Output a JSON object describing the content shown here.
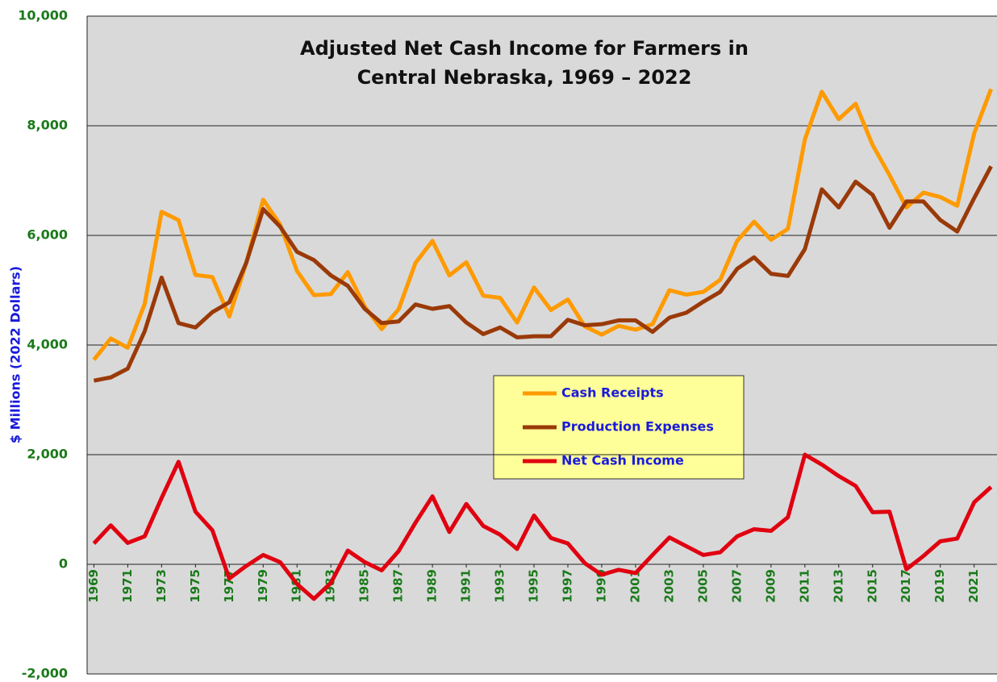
{
  "chart_data": {
    "type": "line",
    "title": "Adjusted Net Cash Income for Farmers in Central Nebraska, 1969 – 2022",
    "y_label": "$ Millions (2022 Dollars)",
    "x": [
      1969,
      1970,
      1971,
      1972,
      1973,
      1974,
      1975,
      1976,
      1977,
      1978,
      1979,
      1980,
      1981,
      1982,
      1983,
      1984,
      1985,
      1986,
      1987,
      1988,
      1989,
      1990,
      1991,
      1992,
      1993,
      1994,
      1995,
      1996,
      1997,
      1998,
      1999,
      2000,
      2001,
      2002,
      2003,
      2004,
      2005,
      2006,
      2007,
      2008,
      2009,
      2010,
      2011,
      2012,
      2013,
      2014,
      2015,
      2016,
      2017,
      2018,
      2019,
      2020,
      2021,
      2022
    ],
    "series": [
      {
        "name": "Cash Receipts",
        "color": "#ff9a00",
        "values": [
          3730,
          4120,
          3950,
          4750,
          6430,
          6280,
          5280,
          5240,
          4520,
          5500,
          6650,
          6200,
          5350,
          4910,
          4930,
          5330,
          4700,
          4290,
          4650,
          5500,
          5900,
          5270,
          5510,
          4900,
          4860,
          4410,
          5050,
          4640,
          4830,
          4340,
          4190,
          4350,
          4280,
          4380,
          5000,
          4920,
          4970,
          5190,
          5900,
          6250,
          5920,
          6120,
          7750,
          8620,
          8120,
          8400,
          7650,
          7100,
          6510,
          6780,
          6700,
          6540,
          7860,
          8670
        ]
      },
      {
        "name": "Production Expenses",
        "color": "#9a3a08",
        "values": [
          3350,
          3410,
          3570,
          4250,
          5230,
          4400,
          4320,
          4600,
          4780,
          5500,
          6480,
          6160,
          5700,
          5550,
          5270,
          5080,
          4660,
          4400,
          4430,
          4740,
          4660,
          4710,
          4410,
          4200,
          4320,
          4140,
          4160,
          4160,
          4460,
          4360,
          4380,
          4450,
          4450,
          4240,
          4500,
          4590,
          4790,
          4970,
          5390,
          5600,
          5300,
          5260,
          5750,
          6840,
          6510,
          6980,
          6740,
          6140,
          6620,
          6620,
          6280,
          6070,
          6680,
          7260
        ]
      },
      {
        "name": "Net Cash Income",
        "color": "#e00010",
        "values": [
          380,
          710,
          390,
          510,
          1210,
          1870,
          960,
          620,
          -260,
          -30,
          170,
          40,
          -360,
          -630,
          -340,
          250,
          40,
          -110,
          240,
          760,
          1240,
          590,
          1100,
          700,
          540,
          280,
          890,
          480,
          380,
          20,
          -190,
          -100,
          -160,
          170,
          490,
          330,
          170,
          220,
          510,
          640,
          610,
          860,
          2000,
          1820,
          1610,
          1430,
          950,
          960,
          -90,
          150,
          420,
          470,
          1130,
          1410
        ]
      }
    ],
    "xlim": [
      1968.6,
      2022.35
    ],
    "xticks": [
      1969,
      1971,
      1973,
      1975,
      1977,
      1979,
      1981,
      1983,
      1985,
      1987,
      1989,
      1991,
      1993,
      1995,
      1997,
      1999,
      2001,
      2003,
      2005,
      2007,
      2009,
      2011,
      2013,
      2015,
      2017,
      2019,
      2021
    ],
    "ylim": [
      -2000,
      10000
    ],
    "yticks": [
      {
        "value": -2000,
        "label": "-2,000"
      },
      0,
      {
        "value": 2000,
        "label": "2,000"
      },
      {
        "value": 4000,
        "label": "4,000"
      },
      {
        "value": 6000,
        "label": "6,000"
      },
      {
        "value": 8000,
        "label": "8,000"
      },
      {
        "value": 10000,
        "label": "10,000"
      }
    ],
    "grid": true
  }
}
